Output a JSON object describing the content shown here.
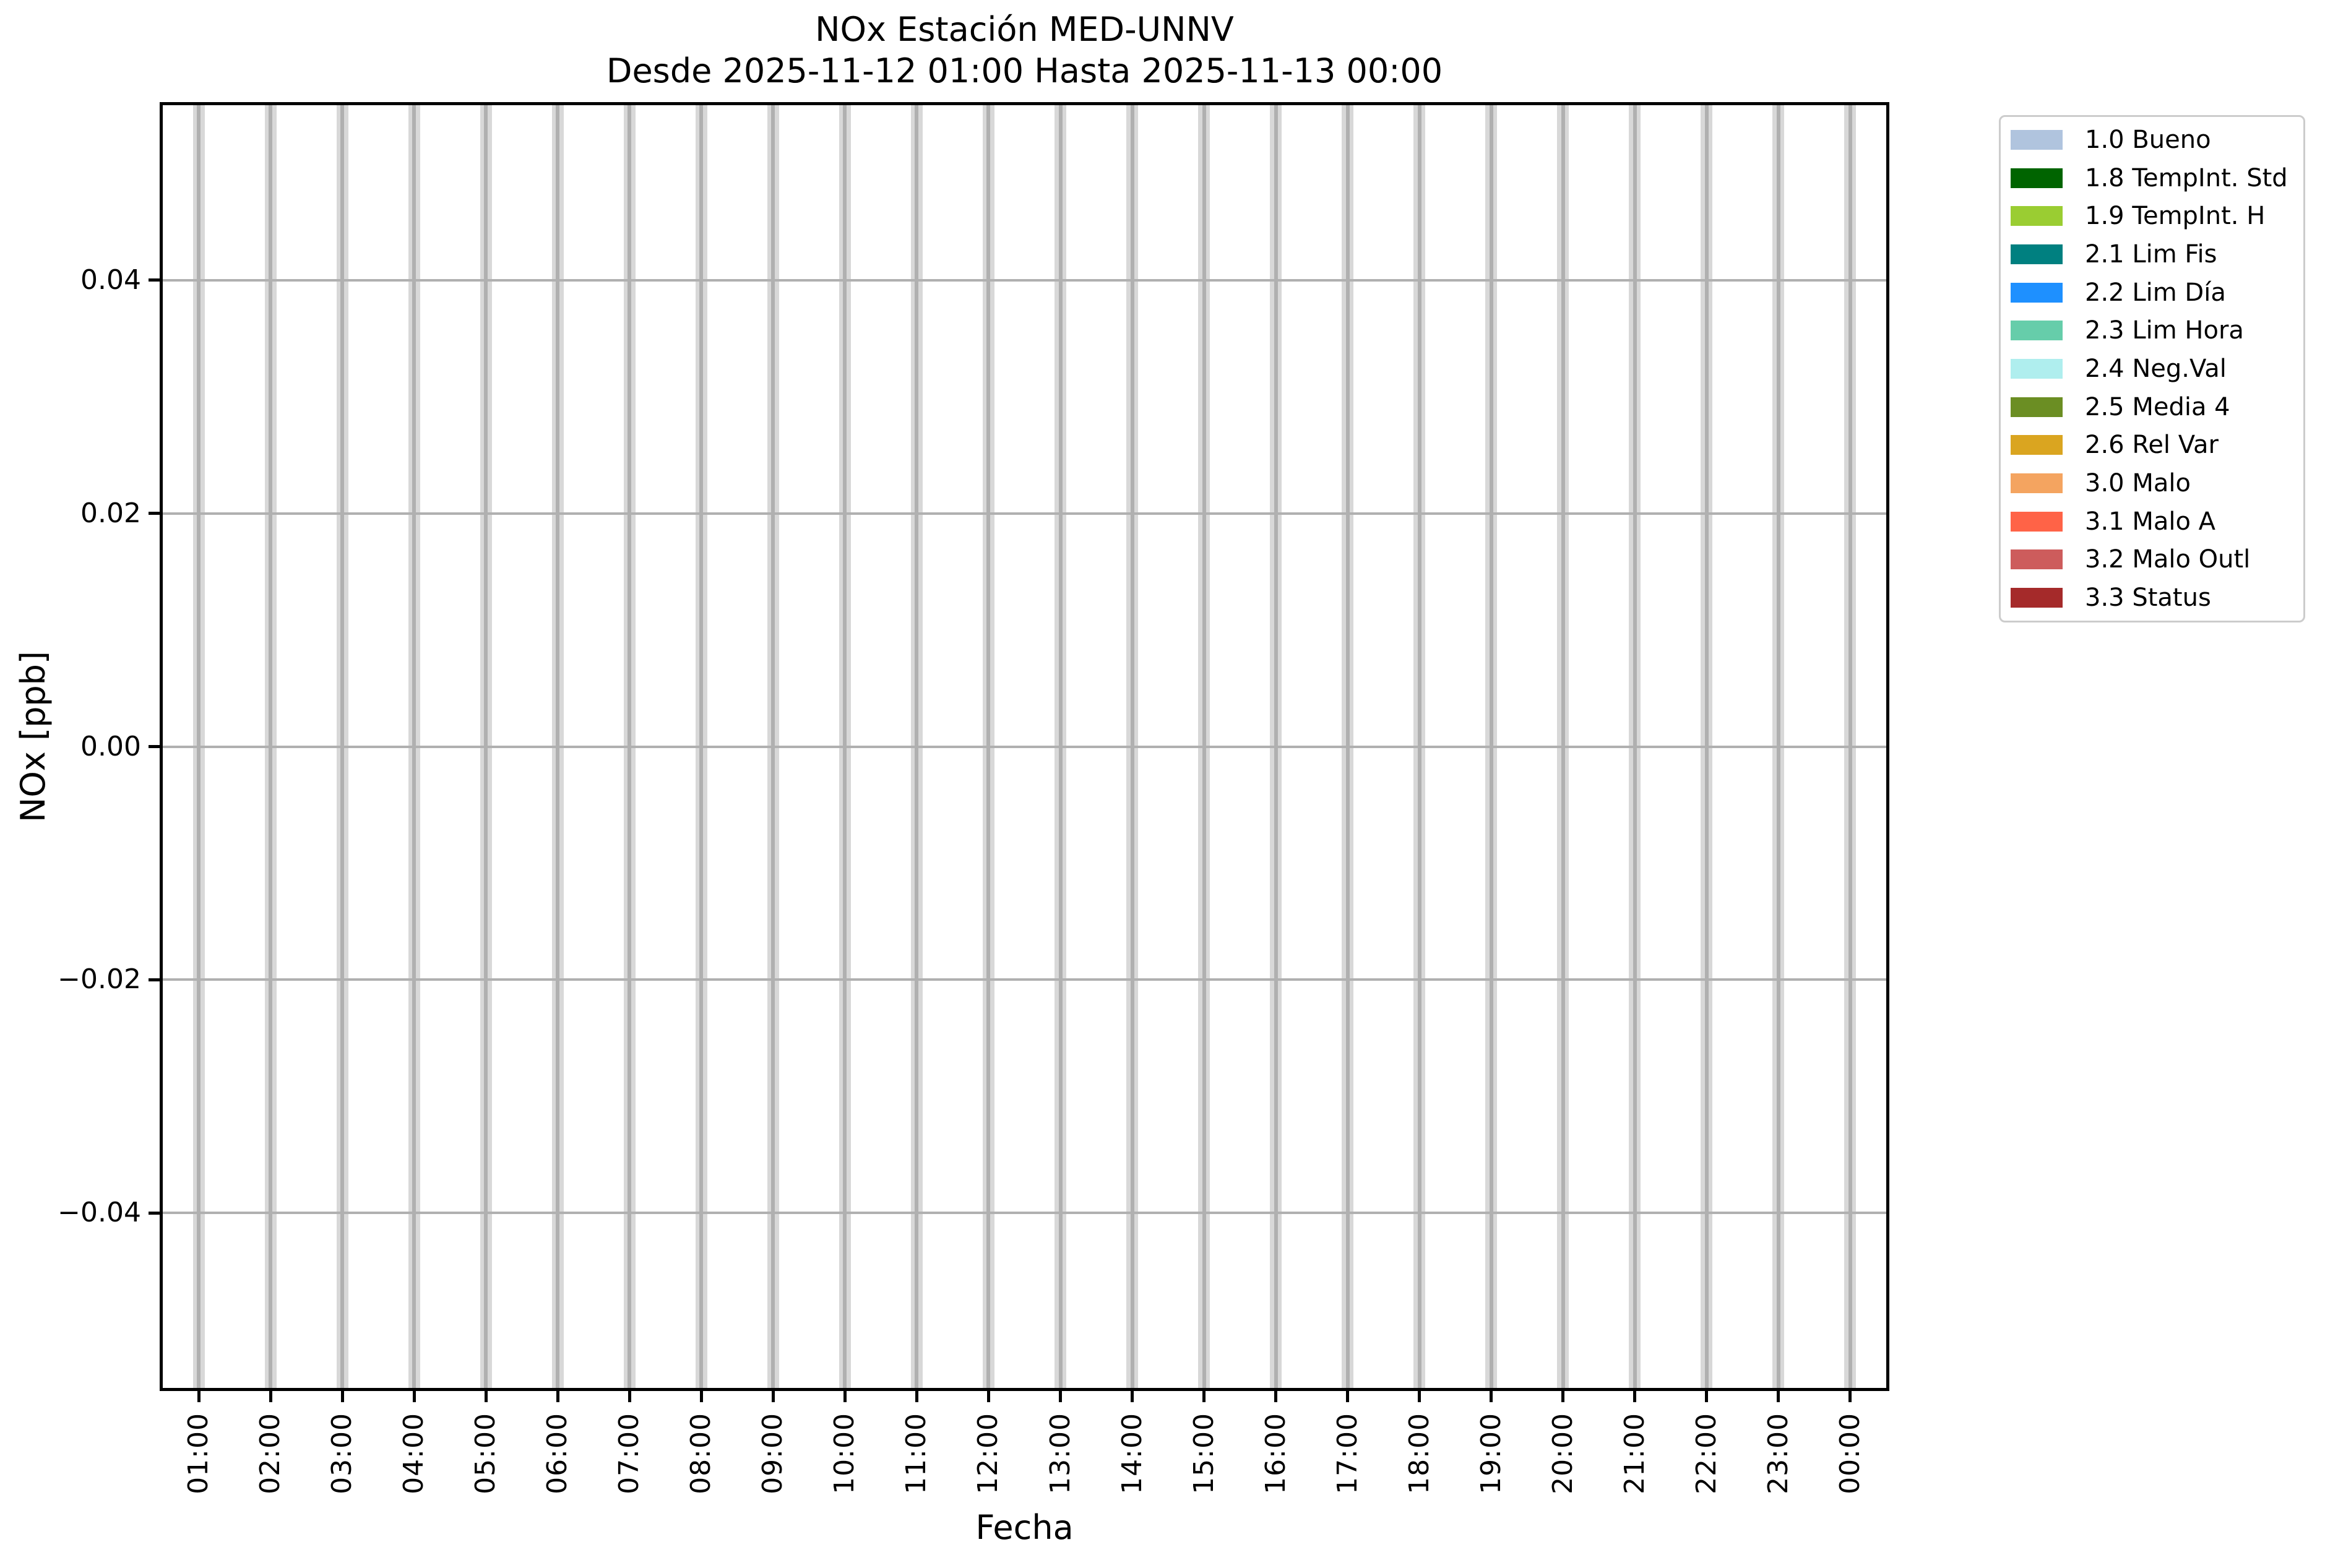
{
  "title": {
    "line1": "NOx Estación MED-UNNV",
    "line2": "Desde 2025-11-12 01:00 Hasta 2025-11-13 00:00"
  },
  "chart_data": {
    "type": "bar",
    "title": "NOx Estación MED-UNNV — Desde 2025-11-12 01:00 Hasta 2025-11-13 00:00",
    "xlabel": "Fecha",
    "ylabel": "NOx [ppb]",
    "categories": [
      "01:00",
      "02:00",
      "03:00",
      "04:00",
      "05:00",
      "06:00",
      "07:00",
      "08:00",
      "09:00",
      "10:00",
      "11:00",
      "12:00",
      "13:00",
      "14:00",
      "15:00",
      "16:00",
      "17:00",
      "18:00",
      "19:00",
      "20:00",
      "21:00",
      "22:00",
      "23:00",
      "00:00"
    ],
    "values": [
      0,
      0,
      0,
      0,
      0,
      0,
      0,
      0,
      0,
      0,
      0,
      0,
      0,
      0,
      0,
      0,
      0,
      0,
      0,
      0,
      0,
      0,
      0,
      0
    ],
    "ylim": [
      -0.055,
      0.055
    ],
    "yticks": {
      "values": [
        0.04,
        0.02,
        0.0,
        -0.02,
        -0.04
      ],
      "labels": [
        "0.04",
        "0.02",
        "0.00",
        "−0.02",
        "−0.04"
      ]
    },
    "grid": {
      "horizontal": true,
      "vertical_hour_bands": true,
      "band_color": "#d8d8d8",
      "grid_color": "#b0b0b0"
    },
    "legend": {
      "position": "upper right outside plot",
      "entries": [
        {
          "label": "1.0 Bueno",
          "color": "#b0c4de"
        },
        {
          "label": "1.8 TempInt. Std",
          "color": "#006400"
        },
        {
          "label": "1.9 TempInt. H",
          "color": "#9acd32"
        },
        {
          "label": "2.1 Lim Fis",
          "color": "#008080"
        },
        {
          "label": "2.2 Lim Día",
          "color": "#1e90ff"
        },
        {
          "label": "2.3 Lim Hora",
          "color": "#66cdaa"
        },
        {
          "label": "2.4 Neg.Val",
          "color": "#afeeee"
        },
        {
          "label": "2.5 Media 4",
          "color": "#6b8e23"
        },
        {
          "label": "2.6 Rel Var",
          "color": "#daa520"
        },
        {
          "label": "3.0 Malo",
          "color": "#f4a460"
        },
        {
          "label": "3.1 Malo A",
          "color": "#ff6347"
        },
        {
          "label": "3.2 Malo Outl",
          "color": "#cd5c5c"
        },
        {
          "label": "3.3 Status",
          "color": "#a52a2a"
        }
      ]
    }
  },
  "colors": {
    "background": "#ffffff",
    "spine": "#000000",
    "tick": "#000000",
    "text": "#000000",
    "legend_border": "#cccccc"
  }
}
